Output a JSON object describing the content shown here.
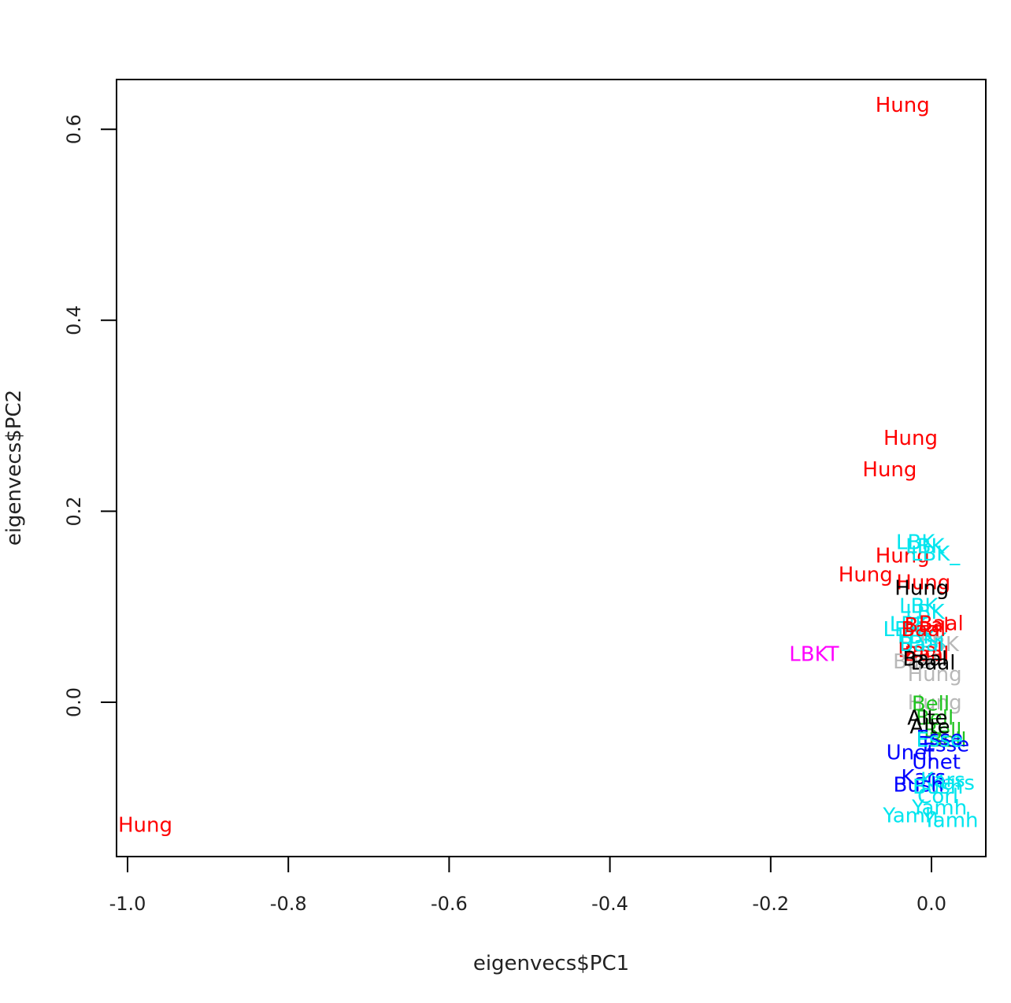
{
  "chart_data": {
    "type": "scatter",
    "title": "",
    "xlabel": "eigenvecs$PC1",
    "ylabel": "eigenvecs$PC2",
    "xlim": [
      -1.0,
      0.0
    ],
    "ylim": [
      -0.1,
      0.6
    ],
    "x_ticks": [
      -1.0,
      -0.8,
      -0.6,
      -0.4,
      -0.2,
      0.0
    ],
    "y_ticks": [
      0.0,
      0.2,
      0.4,
      0.6
    ],
    "x_tick_labels": [
      "-1.0",
      "-0.8",
      "-0.6",
      "-0.4",
      "-0.2",
      "0.0"
    ],
    "y_tick_labels": [
      "0.0",
      "0.2",
      "0.4",
      "0.6"
    ],
    "point_style": "text labels",
    "colors": {
      "red": "#ff0000",
      "cyan": "#00e5ee",
      "black": "#000000",
      "magenta": "#ff00ff",
      "gray": "#b8b8b8",
      "green": "#1fc31f",
      "blue": "#0000ff"
    },
    "points": [
      {
        "label": "Hung",
        "x": -0.036,
        "y": 0.625,
        "color": "red"
      },
      {
        "label": "Hung",
        "x": -0.026,
        "y": 0.276,
        "color": "red"
      },
      {
        "label": "Hung",
        "x": -0.052,
        "y": 0.243,
        "color": "red"
      },
      {
        "label": "Hung",
        "x": -0.036,
        "y": 0.153,
        "color": "red"
      },
      {
        "label": "Hung",
        "x": -0.082,
        "y": 0.133,
        "color": "red"
      },
      {
        "label": "Hung",
        "x": -0.01,
        "y": 0.125,
        "color": "red"
      },
      {
        "label": "Hung",
        "x": -0.012,
        "y": 0.119,
        "color": "black"
      },
      {
        "label": "Hung",
        "x": -0.978,
        "y": -0.129,
        "color": "red"
      },
      {
        "label": "LBKT",
        "x": -0.146,
        "y": 0.05,
        "color": "magenta"
      },
      {
        "label": "LBK",
        "x": -0.02,
        "y": 0.167,
        "color": "cyan"
      },
      {
        "label": "LBK",
        "x": -0.008,
        "y": 0.163,
        "color": "cyan"
      },
      {
        "label": "LBK_",
        "x": 0.005,
        "y": 0.155,
        "color": "cyan"
      },
      {
        "label": "LBK",
        "x": -0.016,
        "y": 0.1,
        "color": "cyan"
      },
      {
        "label": "LBK",
        "x": -0.008,
        "y": 0.094,
        "color": "cyan"
      },
      {
        "label": "LBK",
        "x": -0.028,
        "y": 0.081,
        "color": "cyan"
      },
      {
        "label": "LBK",
        "x": -0.036,
        "y": 0.076,
        "color": "cyan"
      },
      {
        "label": "LBK",
        "x": -0.018,
        "y": 0.068,
        "color": "cyan"
      },
      {
        "label": "LBK",
        "x": -0.005,
        "y": 0.064,
        "color": "cyan"
      },
      {
        "label": "LBK",
        "x": 0.01,
        "y": 0.06,
        "color": "gray"
      },
      {
        "label": "Baal",
        "x": -0.006,
        "y": 0.08,
        "color": "red"
      },
      {
        "label": "Baal",
        "x": 0.012,
        "y": 0.082,
        "color": "red"
      },
      {
        "label": "Baal",
        "x": -0.01,
        "y": 0.076,
        "color": "red"
      },
      {
        "label": "Baal",
        "x": -0.014,
        "y": 0.054,
        "color": "red"
      },
      {
        "label": "Baal",
        "x": -0.006,
        "y": 0.05,
        "color": "red"
      },
      {
        "label": "Baal",
        "x": -0.02,
        "y": 0.042,
        "color": "gray"
      },
      {
        "label": "Baal",
        "x": -0.008,
        "y": 0.045,
        "color": "black"
      },
      {
        "label": "Baal",
        "x": 0.002,
        "y": 0.041,
        "color": "black"
      },
      {
        "label": "Baal",
        "x": -0.012,
        "y": 0.06,
        "color": "cyan"
      },
      {
        "label": "Hung",
        "x": 0.004,
        "y": 0.029,
        "color": "gray"
      },
      {
        "label": "Hung",
        "x": 0.004,
        "y": -0.001,
        "color": "gray"
      },
      {
        "label": "Bell",
        "x": -0.001,
        "y": -0.002,
        "color": "green"
      },
      {
        "label": "Bell",
        "x": 0.004,
        "y": -0.017,
        "color": "green"
      },
      {
        "label": "Bell",
        "x": 0.014,
        "y": -0.03,
        "color": "green"
      },
      {
        "label": "Bell",
        "x": 0.02,
        "y": -0.04,
        "color": "green"
      },
      {
        "label": "Alte",
        "x": -0.005,
        "y": -0.017,
        "color": "black"
      },
      {
        "label": "Alte",
        "x": -0.002,
        "y": -0.026,
        "color": "black"
      },
      {
        "label": "Esse",
        "x": 0.01,
        "y": -0.038,
        "color": "blue"
      },
      {
        "label": "Esse",
        "x": 0.018,
        "y": -0.045,
        "color": "blue"
      },
      {
        "label": "Esse",
        "x": 0.01,
        "y": -0.04,
        "color": "cyan"
      },
      {
        "label": "Unet",
        "x": -0.026,
        "y": -0.053,
        "color": "blue"
      },
      {
        "label": "Unet",
        "x": 0.006,
        "y": -0.063,
        "color": "blue"
      },
      {
        "label": "Kars",
        "x": -0.01,
        "y": -0.079,
        "color": "blue"
      },
      {
        "label": "Kars",
        "x": 0.014,
        "y": -0.082,
        "color": "cyan"
      },
      {
        "label": "Kars",
        "x": 0.026,
        "y": -0.085,
        "color": "cyan"
      },
      {
        "label": "Bush",
        "x": -0.016,
        "y": -0.087,
        "color": "blue"
      },
      {
        "label": "Bush",
        "x": 0.008,
        "y": -0.089,
        "color": "cyan"
      },
      {
        "label": "Corl",
        "x": 0.008,
        "y": -0.099,
        "color": "cyan"
      },
      {
        "label": "Yamh",
        "x": -0.026,
        "y": -0.119,
        "color": "cyan"
      },
      {
        "label": "Yamh",
        "x": 0.01,
        "y": -0.111,
        "color": "cyan"
      },
      {
        "label": "Yamh",
        "x": 0.024,
        "y": -0.124,
        "color": "cyan"
      }
    ]
  }
}
